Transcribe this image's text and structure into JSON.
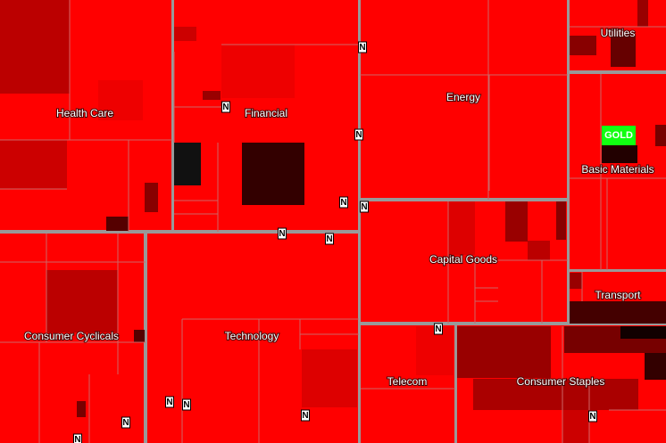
{
  "sectors": [
    {
      "name": "Health Care"
    },
    {
      "name": "Financial"
    },
    {
      "name": "Energy"
    },
    {
      "name": "Utilities"
    },
    {
      "name": "Basic Materials"
    },
    {
      "name": "Capital Goods"
    },
    {
      "name": "Transport"
    },
    {
      "name": "Consumer Cyclicals"
    },
    {
      "name": "Technology"
    },
    {
      "name": "Telecom"
    },
    {
      "name": "Consumer Staples"
    }
  ],
  "highlight": "GOLD",
  "markers": [
    "N",
    "N",
    "N",
    "N",
    "N",
    "N",
    "N",
    "N",
    "N",
    "N",
    "N",
    "N",
    "N",
    "N"
  ]
}
